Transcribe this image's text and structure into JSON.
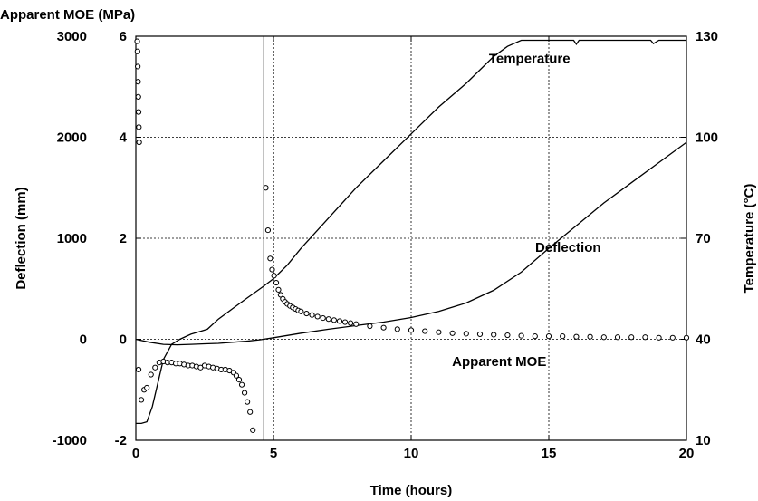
{
  "chart_data": {
    "type": "line",
    "title": "",
    "xlabel": "Time (hours)",
    "xlim": [
      0,
      20
    ],
    "xticks": [
      0,
      5,
      10,
      15,
      20
    ],
    "y_moe_label": "Apparent MOE (MPa)",
    "y_moe_lim": [
      -1000,
      3000
    ],
    "y_moe_ticks": [
      "3000",
      "2000",
      "1000",
      "0",
      "-1000"
    ],
    "y_defl_label": "Deflection (mm)",
    "y_defl_lim": [
      -2,
      6
    ],
    "y_defl_ticks": [
      "6",
      "4",
      "2",
      "0",
      "-2"
    ],
    "y_temp_label": "Temperature (°C)",
    "y_temp_lim": [
      10,
      130
    ],
    "y_temp_ticks": [
      "130",
      "100",
      "70",
      "40",
      "10"
    ],
    "grid": true,
    "vertical_lines": [
      {
        "x": 4.65,
        "style": "solid"
      },
      {
        "x": 5.0,
        "style": "dashed"
      }
    ],
    "series": [
      {
        "name": "Temperature",
        "axis": "temperature",
        "style": "line",
        "x": [
          0,
          0.2,
          0.4,
          0.6,
          0.8,
          1.0,
          1.3,
          1.6,
          2.0,
          2.4,
          2.6,
          3.0,
          3.5,
          4.0,
          4.6,
          5.0,
          5.5,
          6.0,
          7.0,
          8.0,
          9.0,
          10.0,
          11.0,
          12.0,
          13.0,
          13.5,
          14.0,
          15.0,
          15.9,
          16.0,
          16.1,
          17.0,
          18.0,
          18.7,
          18.8,
          19.0,
          20.0
        ],
        "y": [
          15,
          15,
          15.5,
          20,
          27,
          34,
          38.5,
          40,
          41.5,
          42.5,
          43,
          46,
          49,
          52,
          55.5,
          58,
          62,
          67,
          76,
          85,
          93,
          101,
          109,
          116,
          124,
          127,
          128.8,
          128.8,
          128.8,
          127.6,
          128.8,
          128.8,
          128.8,
          128.8,
          127.8,
          128.8,
          128.8
        ]
      },
      {
        "name": "Deflection",
        "axis": "deflection",
        "style": "line",
        "x": [
          0,
          0.5,
          1.0,
          1.5,
          2.0,
          2.5,
          3.0,
          3.5,
          4.0,
          4.5,
          5.0,
          6.0,
          7.0,
          8.0,
          9.0,
          10.0,
          11.0,
          12.0,
          13.0,
          14.0,
          15.0,
          16.0,
          17.0,
          18.0,
          19.0,
          20.0
        ],
        "y": [
          0,
          -0.06,
          -0.1,
          -0.11,
          -0.1,
          -0.09,
          -0.08,
          -0.06,
          -0.04,
          -0.01,
          0.03,
          0.12,
          0.2,
          0.27,
          0.34,
          0.43,
          0.55,
          0.72,
          0.97,
          1.33,
          1.8,
          2.25,
          2.7,
          3.1,
          3.5,
          3.9
        ]
      },
      {
        "name": "Apparent MOE",
        "axis": "moe",
        "style": "scatter",
        "x": [
          0.05,
          0.06,
          0.07,
          0.08,
          0.09,
          0.1,
          0.11,
          0.12,
          0.1,
          0.2,
          0.3,
          0.4,
          0.55,
          0.7,
          0.85,
          1.0,
          1.15,
          1.3,
          1.45,
          1.6,
          1.75,
          1.9,
          2.05,
          2.2,
          2.35,
          2.5,
          2.65,
          2.8,
          2.95,
          3.1,
          3.25,
          3.4,
          3.55,
          3.65,
          3.75,
          3.85,
          3.95,
          4.05,
          4.15,
          4.25,
          4.72,
          4.8,
          4.88,
          4.95,
          5.02,
          5.1,
          5.18,
          5.26,
          5.34,
          5.42,
          5.5,
          5.6,
          5.7,
          5.8,
          5.9,
          6.0,
          6.2,
          6.4,
          6.6,
          6.8,
          7.0,
          7.2,
          7.4,
          7.6,
          7.8,
          8.0,
          8.5,
          9.0,
          9.5,
          10.0,
          10.5,
          11.0,
          11.5,
          12.0,
          12.5,
          13.0,
          13.5,
          14.0,
          14.5,
          15.0,
          15.5,
          16.0,
          16.5,
          17.0,
          17.5,
          18.0,
          18.5,
          19.0,
          19.5,
          20.0
        ],
        "y": [
          2950,
          2850,
          2700,
          2550,
          2400,
          2250,
          2100,
          1950,
          -300,
          -600,
          -500,
          -480,
          -350,
          -280,
          -230,
          -220,
          -230,
          -230,
          -240,
          -240,
          -250,
          -260,
          -260,
          -270,
          -280,
          -260,
          -270,
          -280,
          -290,
          -300,
          -300,
          -310,
          -330,
          -360,
          -400,
          -450,
          -530,
          -620,
          -720,
          -900,
          1500,
          1080,
          800,
          690,
          630,
          560,
          490,
          440,
          400,
          370,
          350,
          330,
          315,
          300,
          285,
          275,
          255,
          240,
          225,
          210,
          200,
          190,
          180,
          170,
          160,
          150,
          130,
          115,
          100,
          90,
          80,
          70,
          60,
          55,
          50,
          45,
          40,
          35,
          30,
          30,
          30,
          25,
          25,
          20,
          20,
          20,
          20,
          15,
          15,
          15
        ]
      }
    ],
    "annotations": [
      {
        "text": "Temperature",
        "x": 14.3,
        "temp": 122
      },
      {
        "text": "Deflection",
        "x": 15.7,
        "temp": 66
      },
      {
        "text": "Apparent MOE",
        "x": 13.2,
        "temp": 32
      }
    ]
  }
}
